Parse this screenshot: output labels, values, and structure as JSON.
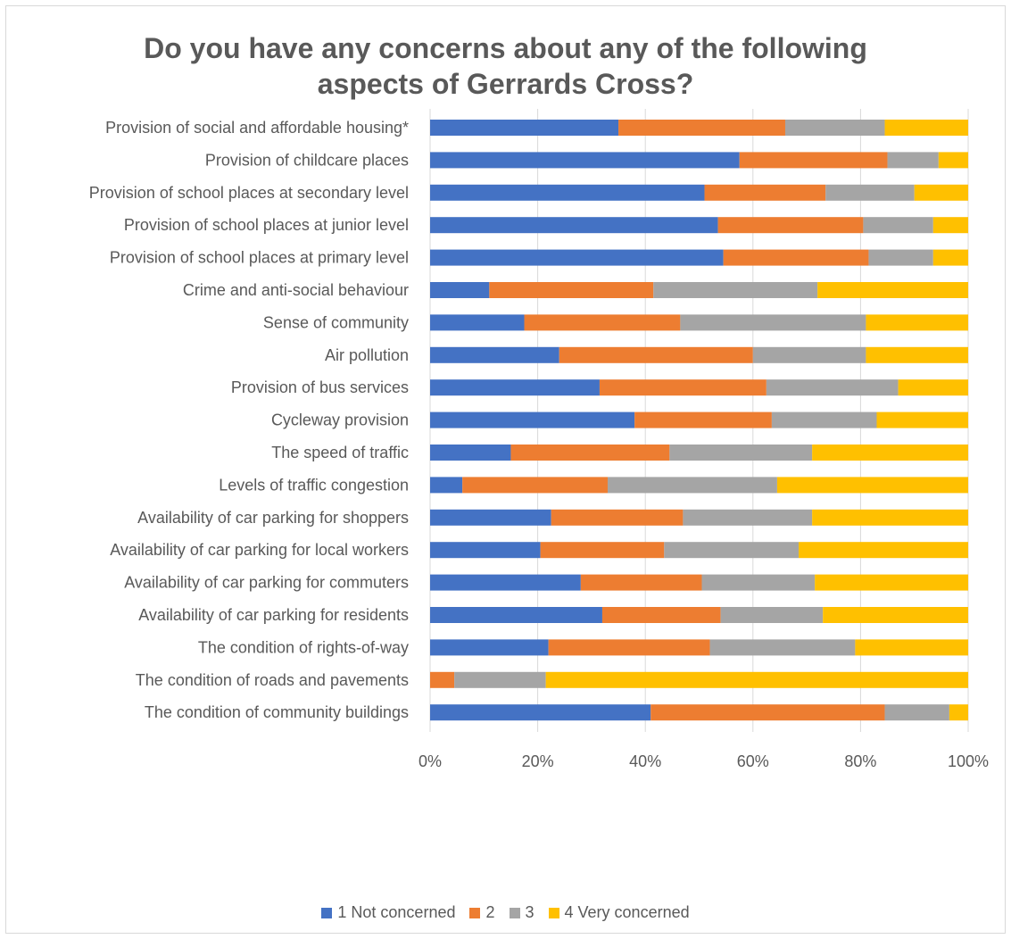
{
  "chart_data": {
    "type": "bar",
    "orientation": "horizontal",
    "stacked": "percent",
    "title_lines": [
      "Do you have any concerns about any of the following",
      "aspects of Gerrards Cross?"
    ],
    "categories": [
      "Provision of social and affordable housing*",
      "Provision of childcare places",
      "Provision of school places at secondary level",
      "Provision of school places at junior level",
      "Provision of school places at primary level",
      "Crime and anti-social behaviour",
      "Sense of community",
      "Air pollution",
      "Provision of bus services",
      "Cycleway provision",
      "The speed of traffic",
      "Levels of traffic congestion",
      "Availability of car parking for shoppers",
      "Availability of car parking for local workers",
      "Availability of car parking for commuters",
      "Availability of car parking for residents",
      "The condition of rights-of-way",
      "The condition of roads and pavements",
      "The condition of community buildings"
    ],
    "series": [
      {
        "name": "1 Not concerned",
        "color": "#4472c4",
        "values": [
          35,
          57.5,
          51,
          53.5,
          54.5,
          11,
          17.5,
          24,
          31.5,
          38,
          15,
          6,
          22.5,
          20.5,
          28,
          32,
          22,
          0,
          41
        ]
      },
      {
        "name": "2",
        "color": "#ed7d31",
        "values": [
          31,
          27.5,
          22.5,
          27,
          27,
          30.5,
          29,
          36,
          31,
          25.5,
          29.5,
          27,
          24.5,
          23,
          22.5,
          22,
          30,
          4.5,
          43.5
        ]
      },
      {
        "name": "3",
        "color": "#a5a5a5",
        "values": [
          18.5,
          9.5,
          16.5,
          13,
          12,
          30.5,
          34.5,
          21,
          24.5,
          19.5,
          26.5,
          31.5,
          24,
          25,
          21,
          19,
          27,
          17,
          12
        ]
      },
      {
        "name": "4 Very concerned",
        "color": "#ffc000",
        "values": [
          15.5,
          5.5,
          10,
          6.5,
          6.5,
          28,
          19,
          19,
          13,
          17,
          29,
          35.5,
          29,
          31.5,
          28.5,
          27,
          21,
          78.5,
          3.5
        ]
      }
    ],
    "x_ticks": [
      "0%",
      "20%",
      "40%",
      "60%",
      "80%",
      "100%"
    ],
    "xlim": [
      0,
      100
    ],
    "grid": true,
    "legend_position": "bottom"
  }
}
